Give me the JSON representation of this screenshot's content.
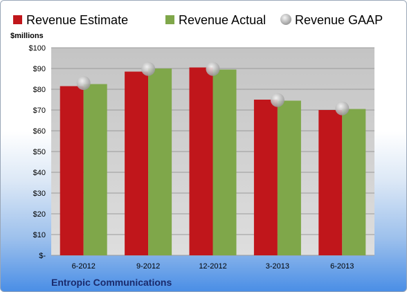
{
  "chart_data": {
    "type": "bar",
    "title": "",
    "ylabel": "$millions",
    "xlabel": "",
    "categories": [
      "6-2012",
      "9-2012",
      "12-2012",
      "3-2013",
      "6-2013"
    ],
    "series": [
      {
        "name": "Revenue Estimate",
        "values": [
          81.5,
          88.5,
          90.5,
          75.0,
          70.0
        ],
        "color": "#c0161b"
      },
      {
        "name": "Revenue Actual",
        "values": [
          82.5,
          90.0,
          89.5,
          74.5,
          70.5
        ],
        "color": "#7fa74a"
      },
      {
        "name": "Revenue GAAP",
        "values": [
          83.0,
          89.8,
          89.8,
          74.8,
          70.8
        ],
        "color": "#b8b8b8"
      }
    ],
    "ylim": [
      0,
      100
    ],
    "yticks": [
      "$-",
      "$10",
      "$20",
      "$30",
      "$40",
      "$50",
      "$60",
      "$70",
      "$80",
      "$90",
      "$100"
    ],
    "grid": true,
    "legend_position": "top"
  },
  "footer": {
    "company": "Entropic Communications"
  }
}
